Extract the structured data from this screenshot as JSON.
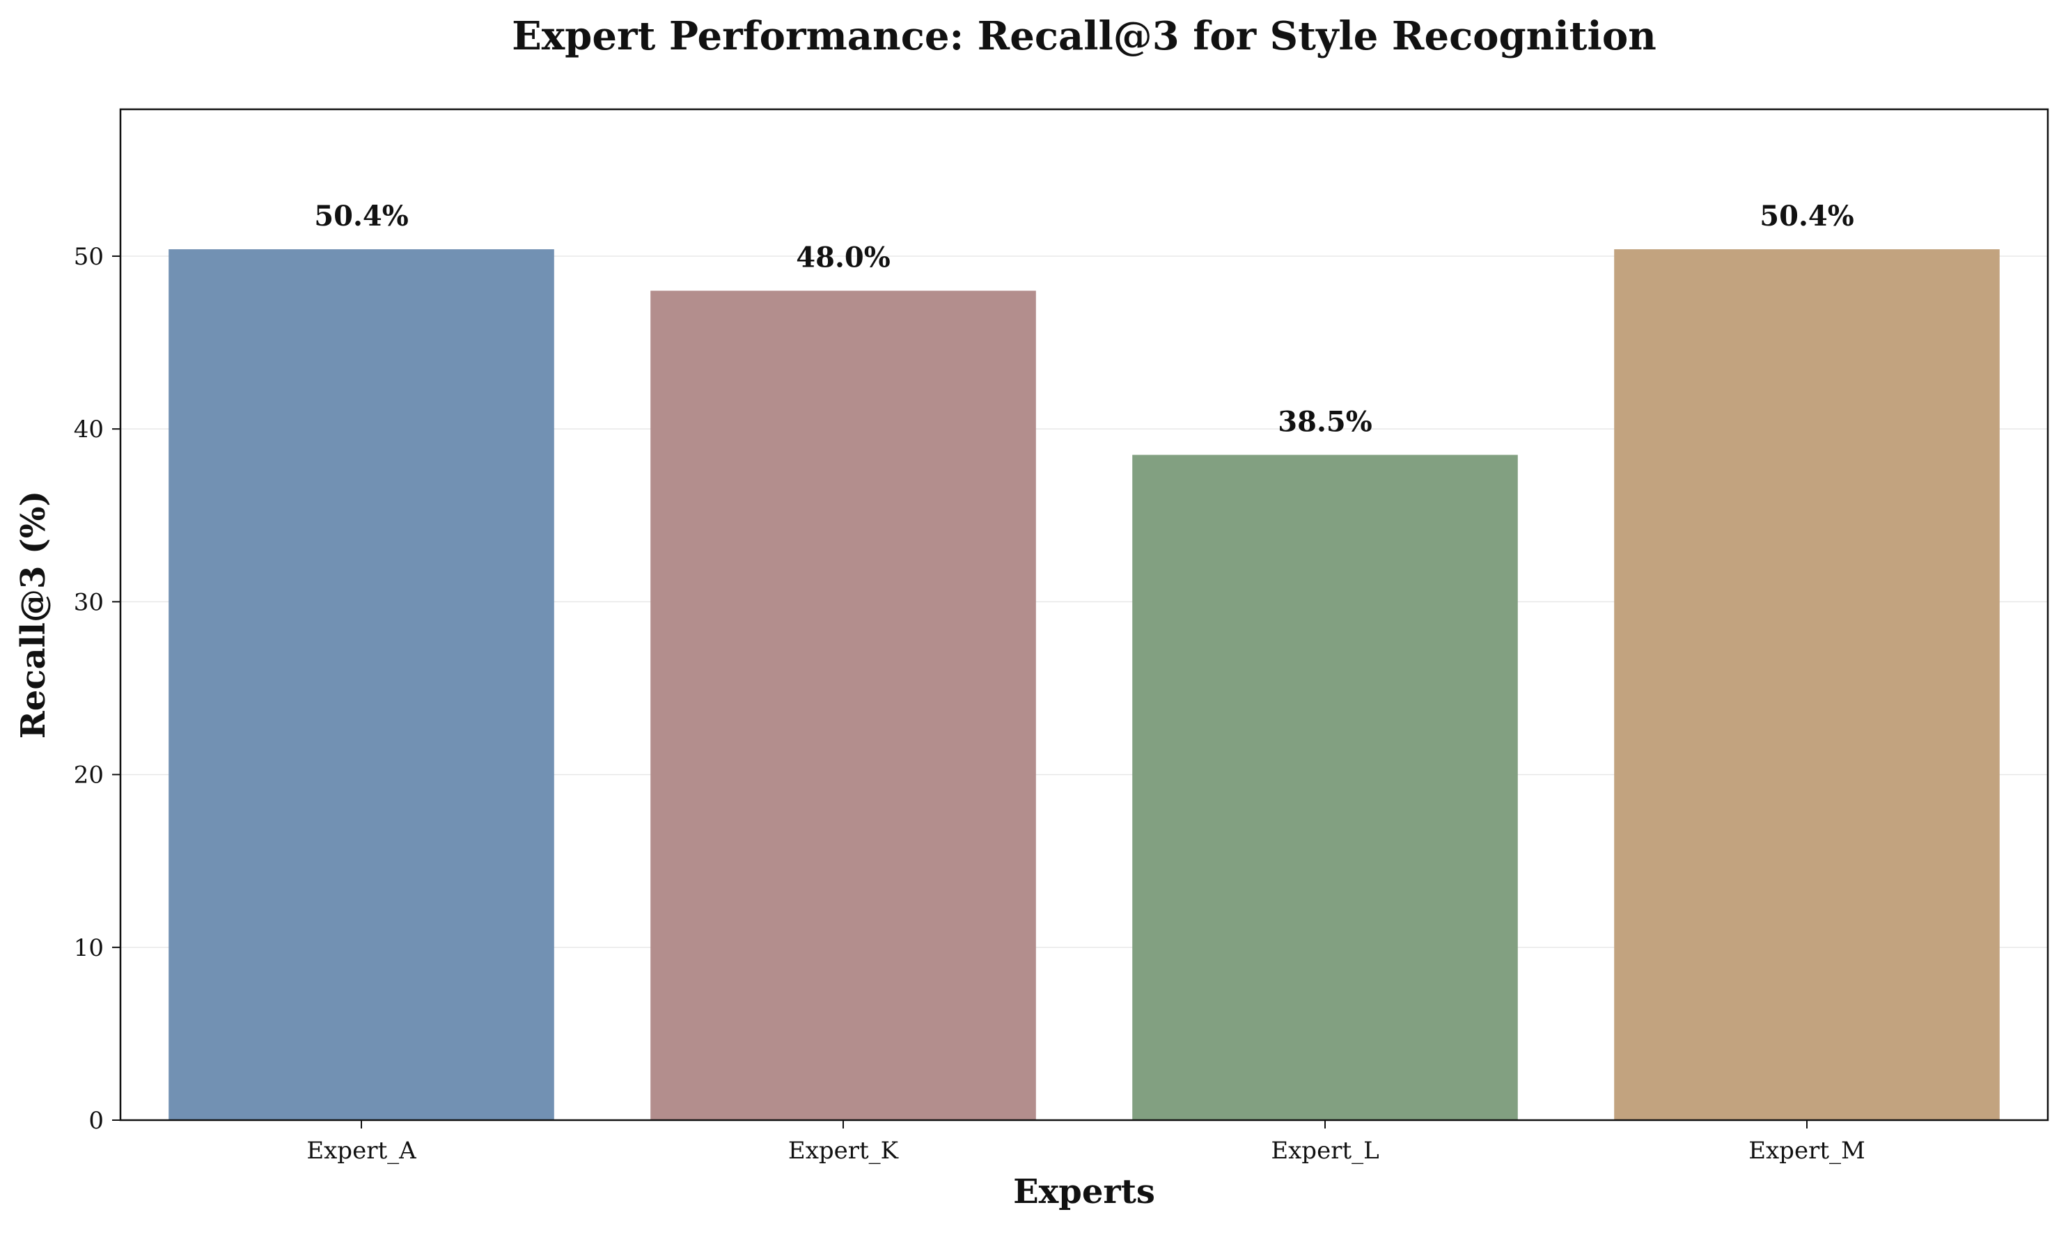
{
  "chart_data": {
    "type": "bar",
    "title": "Expert Performance: Recall@3 for Style Recognition",
    "xlabel": "Experts",
    "ylabel": "Recall@3 (%)",
    "categories": [
      "Expert_A",
      "Expert_K",
      "Expert_L",
      "Expert_M"
    ],
    "values": [
      50.4,
      48.0,
      38.5,
      50.4
    ],
    "data_labels": [
      "50.4%",
      "48.0%",
      "38.5%",
      "50.4%"
    ],
    "colors": [
      "#7291b3",
      "#b38e8d",
      "#82a081",
      "#c2a37f"
    ],
    "ylim": [
      0,
      58.5
    ],
    "yticks": [
      0,
      10,
      20,
      30,
      40,
      50
    ],
    "grid": "y",
    "legend": "none"
  }
}
